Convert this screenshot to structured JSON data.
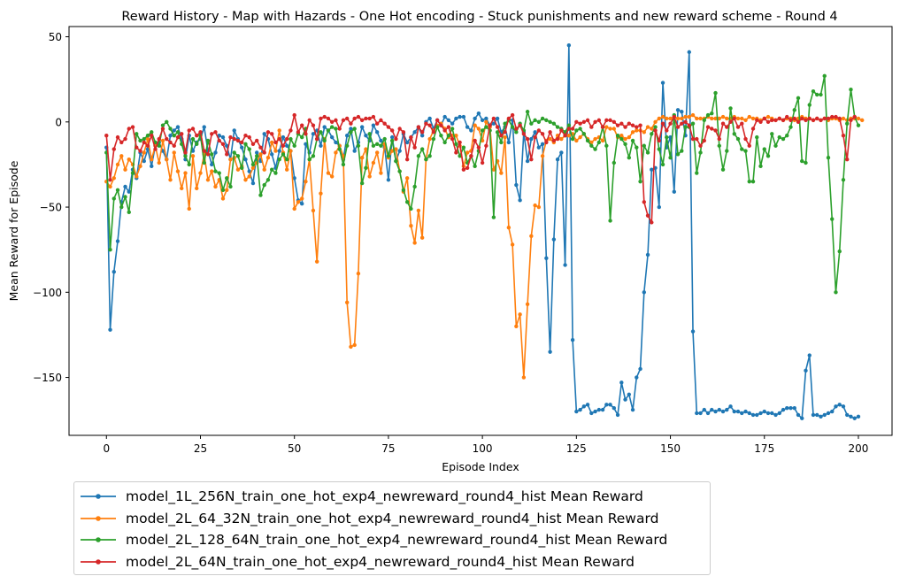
{
  "chart_data": {
    "type": "line",
    "title": "Reward History - Map with Hazards - One Hot encoding - Stuck punishments and new reward scheme - Round 4",
    "xlabel": "Episode Index",
    "ylabel": "Mean Reward for Episode",
    "xlim": [
      -9.95,
      208.95
    ],
    "ylim": [
      -184,
      56
    ],
    "xticks": [
      0,
      25,
      50,
      75,
      100,
      125,
      150,
      175,
      200
    ],
    "yticks": [
      50,
      0,
      -50,
      -100,
      -150
    ],
    "ytick_labels": [
      "50",
      "0",
      "−50",
      "−100",
      "−150"
    ],
    "grid": false,
    "legend_position": "below plot",
    "series": [
      {
        "name": "model_1L_256N_train_one_hot_exp4_newreward_round4_hist Mean Reward",
        "color": "#1f77b4",
        "values": [
          -15,
          -122,
          -88,
          -70,
          -47,
          -38,
          -41,
          -28,
          -33,
          -18,
          -23,
          -16,
          -26,
          -14,
          -12,
          -17,
          -22,
          -8,
          -5,
          -3,
          -10,
          -22,
          -8,
          -17,
          -12,
          -10,
          -3,
          -17,
          -25,
          -18,
          -8,
          -9,
          -14,
          -22,
          -5,
          -10,
          -15,
          -22,
          -29,
          -36,
          -18,
          -23,
          -7,
          -10,
          -19,
          -27,
          -17,
          -9,
          -14,
          -17,
          -33,
          -46,
          -48,
          -13,
          -18,
          -7,
          -5,
          -14,
          -3,
          -5,
          -9,
          -12,
          -14,
          -22,
          -8,
          -4,
          -17,
          -12,
          -3,
          -8,
          -11,
          -2,
          -6,
          -11,
          -15,
          -34,
          -9,
          -23,
          -17,
          -7,
          -12,
          -9,
          -6,
          -3,
          -8,
          0,
          2,
          -4,
          1,
          -2,
          3,
          1,
          -1,
          2,
          3,
          3,
          -3,
          -5,
          2,
          5,
          1,
          2,
          -2,
          -1,
          2,
          -6,
          -3,
          -12,
          1,
          -37,
          -46,
          -6,
          -23,
          -10,
          -6,
          -15,
          -13,
          -80,
          -135,
          -69,
          -22,
          -18,
          -84,
          45,
          -128,
          -170,
          -169,
          -167,
          -166,
          -171,
          -170,
          -169,
          -169,
          -166,
          -166,
          -168,
          -172,
          -153,
          -163,
          -160,
          -169,
          -150,
          -145,
          -100,
          -78,
          -28,
          -27,
          -50,
          23,
          -15,
          -9,
          -41,
          7,
          6,
          -8,
          41,
          -123,
          -171,
          -171,
          -169,
          -171,
          -169,
          -170,
          -169,
          -170,
          -169,
          -167,
          -170,
          -170,
          -171,
          -170,
          -171,
          -172,
          -172,
          -171,
          -170,
          -171,
          -171,
          -172,
          -171,
          -169,
          -168,
          -168,
          -168,
          -172,
          -174,
          -146,
          -137,
          -172,
          -172,
          -173,
          -172,
          -171,
          -170,
          -167,
          -166,
          -167,
          -172,
          -173,
          -174,
          -173
        ]
      },
      {
        "name": "model_2L_64_32N_train_one_hot_exp4_newreward_round4_hist Mean Reward",
        "color": "#ff7f0e",
        "values": [
          -35,
          -38,
          -33,
          -25,
          -20,
          -28,
          -22,
          -25,
          -32,
          -26,
          -18,
          -10,
          -22,
          -14,
          -24,
          -11,
          -22,
          -34,
          -18,
          -29,
          -39,
          -30,
          -51,
          -20,
          -39,
          -30,
          -19,
          -34,
          -29,
          -38,
          -34,
          -45,
          -40,
          -22,
          -21,
          -28,
          -26,
          -34,
          -32,
          -27,
          -24,
          -19,
          -28,
          -21,
          -12,
          -17,
          -5,
          -18,
          -28,
          -17,
          -51,
          -47,
          -45,
          -35,
          -22,
          -52,
          -82,
          -42,
          -10,
          -30,
          -32,
          -18,
          -14,
          -20,
          -106,
          -132,
          -131,
          -89,
          -21,
          -16,
          -32,
          -24,
          -18,
          -30,
          -13,
          -21,
          -17,
          -16,
          -29,
          -41,
          -33,
          -61,
          -71,
          -52,
          -68,
          -22,
          -10,
          -5,
          -2,
          -1,
          -4,
          -9,
          -8,
          -8,
          -14,
          -26,
          -18,
          -17,
          -2,
          -4,
          -11,
          0,
          -3,
          -28,
          -23,
          -30,
          -9,
          -62,
          -72,
          -120,
          -113,
          -150,
          -107,
          -67,
          -49,
          -50,
          -20,
          -11,
          -10,
          -12,
          -8,
          -10,
          -8,
          -8,
          -7,
          -11,
          -9,
          -7,
          -10,
          -12,
          -10,
          -9,
          -11,
          -3,
          -4,
          -4,
          -9,
          -8,
          -10,
          -9,
          -6,
          -5,
          -5,
          -6,
          -3,
          -4,
          0,
          2,
          3,
          2,
          2,
          3,
          2,
          2,
          3,
          3,
          4,
          2,
          2,
          2,
          3,
          2,
          2,
          2,
          3,
          2,
          2,
          3,
          2,
          2,
          1,
          3,
          2,
          2,
          1,
          2,
          3,
          2,
          1,
          2,
          1,
          2,
          2,
          1,
          2,
          3,
          2,
          2,
          1,
          2,
          1,
          2,
          1,
          2,
          2,
          1,
          2,
          1,
          2,
          2,
          2,
          1
        ]
      },
      {
        "name": "model_2L_128_64N_train_one_hot_exp4_newreward_round4_hist Mean Reward",
        "color": "#2ca02c",
        "values": [
          -18,
          -75,
          -45,
          -40,
          -50,
          -44,
          -53,
          -30,
          -7,
          -11,
          -10,
          -8,
          -6,
          -12,
          -14,
          -2,
          0,
          -4,
          -8,
          -6,
          -13,
          -20,
          -25,
          -10,
          -13,
          -8,
          -24,
          -11,
          -19,
          -29,
          -30,
          -40,
          -33,
          -38,
          -18,
          -20,
          -27,
          -13,
          -16,
          -25,
          -20,
          -43,
          -37,
          -34,
          -28,
          -30,
          -22,
          -19,
          -22,
          -10,
          -14,
          -7,
          -9,
          -4,
          -22,
          -20,
          -10,
          -6,
          -11,
          -5,
          -3,
          -4,
          -16,
          -25,
          -14,
          -6,
          -4,
          -14,
          -36,
          -27,
          -7,
          -14,
          -13,
          -14,
          -10,
          -20,
          -11,
          -23,
          -29,
          -40,
          -47,
          -51,
          -38,
          -20,
          -16,
          -22,
          -20,
          -10,
          -3,
          -8,
          -12,
          -8,
          -4,
          -13,
          -20,
          -15,
          -24,
          -20,
          -26,
          -17,
          -5,
          -3,
          -5,
          -56,
          -6,
          -12,
          -1,
          1,
          -3,
          -6,
          -1,
          -5,
          6,
          -1,
          1,
          0,
          2,
          1,
          0,
          -1,
          -3,
          -4,
          -6,
          -2,
          -10,
          -5,
          -4,
          -7,
          -11,
          -14,
          -16,
          -12,
          -3,
          -14,
          -58,
          -24,
          -8,
          -10,
          -13,
          -21,
          -11,
          -15,
          -35,
          -14,
          -18,
          -7,
          -3,
          -16,
          -25,
          -9,
          -21,
          4,
          -19,
          -17,
          -3,
          -3,
          -1,
          -30,
          -18,
          1,
          4,
          5,
          17,
          -14,
          -28,
          -17,
          8,
          -7,
          -10,
          -16,
          -17,
          -35,
          -35,
          -9,
          -26,
          -16,
          -20,
          -7,
          -14,
          -9,
          -10,
          -8,
          -3,
          7,
          14,
          -23,
          -24,
          10,
          18,
          16,
          16,
          27,
          -21,
          -57,
          -100,
          -76,
          -34,
          -1,
          19,
          3,
          -2
        ]
      },
      {
        "name": "model_2L_64N_train_one_hot_exp4_newreward_round4_hist Mean Reward",
        "color": "#d62728",
        "values": [
          -8,
          -34,
          -16,
          -9,
          -12,
          -10,
          -4,
          -3,
          -15,
          -17,
          -12,
          -14,
          -8,
          -16,
          -10,
          -4,
          -10,
          -12,
          -14,
          -9,
          -7,
          -18,
          -5,
          -4,
          -8,
          -6,
          -17,
          -19,
          -7,
          -6,
          -11,
          -13,
          -19,
          -9,
          -10,
          -11,
          -12,
          -8,
          -9,
          -13,
          -11,
          -15,
          -18,
          -6,
          -7,
          -12,
          -10,
          -14,
          -10,
          -5,
          4,
          -6,
          -2,
          -7,
          1,
          -2,
          -10,
          2,
          3,
          2,
          0,
          1,
          -4,
          1,
          2,
          -1,
          2,
          3,
          1,
          2,
          2,
          3,
          -1,
          1,
          -1,
          -3,
          -5,
          -10,
          -4,
          -6,
          -22,
          -9,
          -15,
          -3,
          -6,
          -1,
          -2,
          -6,
          1,
          -2,
          -5,
          -3,
          -10,
          -18,
          -12,
          -28,
          -27,
          -20,
          -11,
          -15,
          -24,
          -14,
          -2,
          2,
          -3,
          -8,
          -6,
          2,
          4,
          -4,
          -2,
          -7,
          -10,
          -22,
          -9,
          -5,
          -7,
          -12,
          -6,
          -11,
          -10,
          -5,
          -8,
          -4,
          -4,
          0,
          -1,
          0,
          1,
          -3,
          0,
          1,
          -3,
          1,
          1,
          0,
          -2,
          -1,
          -3,
          -1,
          -2,
          -3,
          -2,
          -47,
          -55,
          -59,
          -5,
          -11,
          -1,
          -5,
          -1,
          3,
          -3,
          -1,
          0,
          -2,
          -10,
          -10,
          -14,
          -11,
          -3,
          -4,
          -5,
          -10,
          -1,
          -3,
          0,
          2,
          -3,
          -1,
          -10,
          -14,
          -4,
          1,
          0,
          2,
          0,
          1,
          1,
          2,
          1,
          3,
          1,
          2,
          0,
          2,
          1,
          2,
          1,
          2,
          1,
          2,
          2,
          3,
          3,
          2,
          -8,
          -22,
          1,
          3
        ]
      }
    ]
  }
}
